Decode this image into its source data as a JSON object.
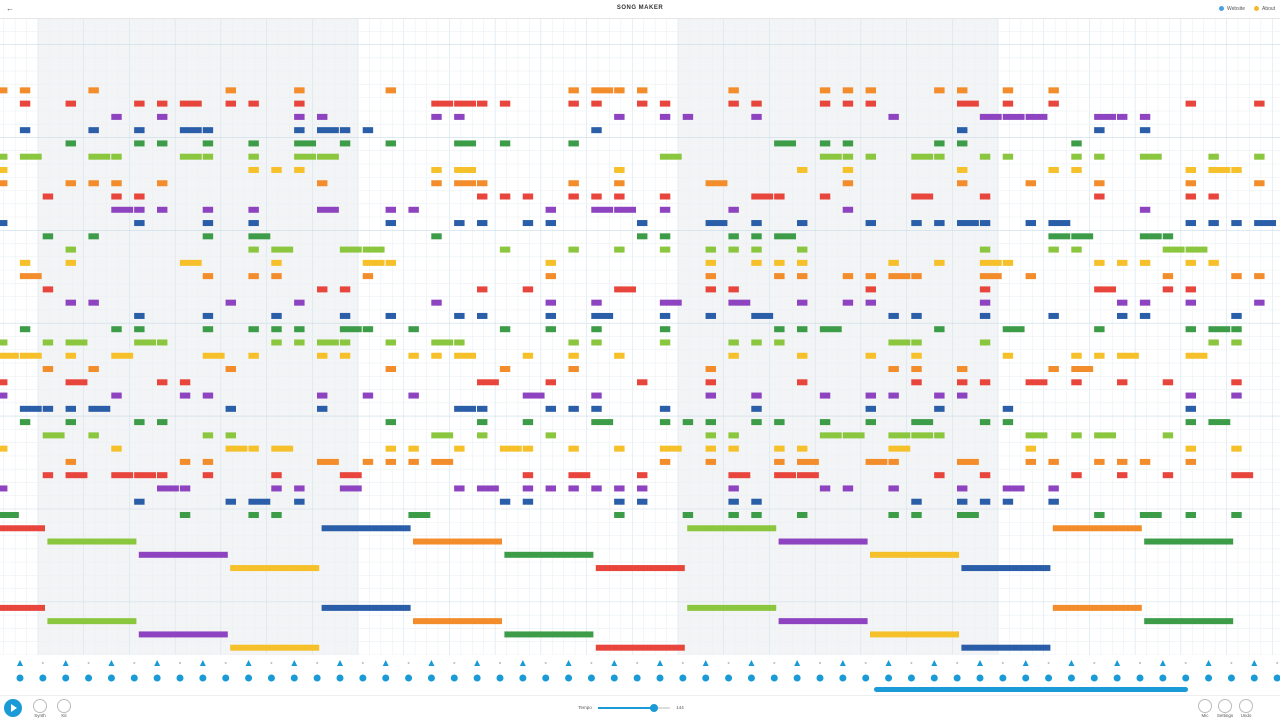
{
  "header": {
    "title": "SONG MAKER",
    "links": [
      "Website",
      "About"
    ]
  },
  "footer": {
    "instrument": "Synth",
    "percussion": "Kit",
    "tempo_label": "Tempo",
    "tempo_value": "144",
    "buttons": [
      "Mic",
      "Settings",
      "Undo"
    ]
  }
}
